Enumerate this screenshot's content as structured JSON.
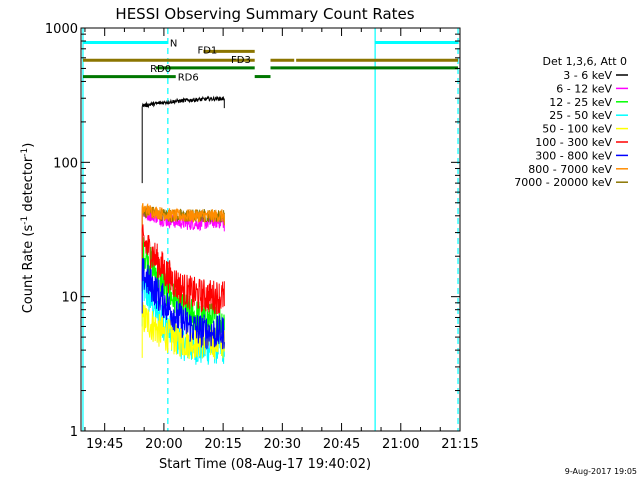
{
  "chart_data": {
    "type": "line",
    "title": "HESSI Observing Summary Count Rates",
    "xlabel": "Start Time (08-Aug-17 19:40:02)",
    "ylabel": "Count Rate (s",
    "ylabel_sup1": "-1",
    "ylabel_mid": " detector",
    "ylabel_sup2": "-1",
    "ylabel_end": ")",
    "y_scale": "log",
    "ylim": [
      1,
      1000
    ],
    "xlim_min": [
      -6,
      90
    ],
    "x_unit": "minutes after 19:45",
    "y_ticks": [
      {
        "v": 1,
        "label": "1"
      },
      {
        "v": 10,
        "label": "10"
      },
      {
        "v": 100,
        "label": "100"
      },
      {
        "v": 1000,
        "label": "1000"
      }
    ],
    "x_ticks": [
      {
        "t": 0,
        "label": "19:45"
      },
      {
        "t": 15,
        "label": "20:00"
      },
      {
        "t": 30,
        "label": "20:15"
      },
      {
        "t": 45,
        "label": "20:30"
      },
      {
        "t": 60,
        "label": "20:45"
      },
      {
        "t": 75,
        "label": "21:00"
      },
      {
        "t": 90,
        "label": "21:15"
      }
    ],
    "legend_title": "Det 1,3,6, Att 0",
    "legend_placement": "right",
    "series": [
      {
        "name": "3 - 6 keV",
        "color": "#000000",
        "start": 9.5,
        "end": 30.3,
        "values": [
          265,
          268,
          272,
          276,
          280,
          283,
          286,
          288,
          290,
          292,
          294,
          296,
          297,
          298,
          298
        ]
      },
      {
        "name": "6 - 12 keV",
        "color": "#ff00ff",
        "start": 9.5,
        "end": 30.3,
        "values": [
          42,
          41,
          40,
          38,
          37,
          36.5,
          36,
          35.5,
          35,
          35,
          35,
          35.5,
          36,
          36,
          36
        ]
      },
      {
        "name": "12 - 25 keV",
        "color": "#00ff00",
        "start": 9.5,
        "end": 30.3,
        "values": [
          22,
          19,
          16,
          13.5,
          11.5,
          10,
          9,
          8.2,
          7.6,
          7.2,
          7,
          6.8,
          6.7,
          6.6,
          6.6
        ]
      },
      {
        "name": "25 - 50 keV",
        "color": "#00ffff",
        "start": 9.5,
        "end": 30.3,
        "values": [
          12,
          10,
          8.5,
          7,
          6,
          5.3,
          4.8,
          4.5,
          4.3,
          4.2,
          4.1,
          4.1,
          4.2,
          4.2,
          4.2
        ]
      },
      {
        "name": "50 - 100 keV",
        "color": "#ffff00",
        "start": 9.5,
        "end": 30.3,
        "values": [
          7,
          6.5,
          6,
          5.5,
          5.2,
          5,
          4.8,
          4.7,
          4.6,
          4.6,
          4.6,
          4.6,
          4.6,
          4.6,
          4.6
        ]
      },
      {
        "name": "100 - 300 keV",
        "color": "#ff0000",
        "start": 9.5,
        "end": 30.3,
        "values": [
          26,
          23,
          20,
          17.5,
          15,
          13.5,
          12.2,
          11.3,
          10.8,
          10.4,
          10.2,
          10.1,
          10,
          10,
          10
        ]
      },
      {
        "name": "300 - 800 keV",
        "color": "#0000ff",
        "start": 9.5,
        "end": 30.3,
        "values": [
          15,
          13,
          11.5,
          10,
          8.8,
          7.8,
          7,
          6.5,
          6.1,
          5.8,
          5.6,
          5.5,
          5.4,
          5.4,
          5.4
        ]
      },
      {
        "name": "800 - 7000 keV",
        "color": "#ff8c00",
        "start": 9.5,
        "end": 30.3,
        "values": [
          45,
          44,
          43,
          42,
          41,
          40.5,
          40,
          40,
          40,
          40,
          40,
          40,
          40,
          40,
          40
        ]
      },
      {
        "name": "7000 - 20000 keV",
        "color": "#8b7500",
        "start": 9.5,
        "end": 30.3,
        "values": [
          44,
          43,
          42,
          41,
          40.5,
          40,
          40,
          40,
          40,
          40,
          40,
          40,
          40,
          40,
          40
        ]
      }
    ],
    "vlines": [
      {
        "t": -5.5,
        "style": "solid"
      },
      {
        "t": 16,
        "style": "dashed"
      },
      {
        "t": 68.5,
        "style": "solid"
      },
      {
        "t": 89.5,
        "style": "dashed"
      }
    ],
    "flag_bars": [
      {
        "label": "N",
        "color": "#00ffff",
        "v": 780,
        "segments": [
          [
            -5.5,
            16
          ],
          [
            68.5,
            89.5
          ]
        ],
        "label_t": 16.5,
        "label_v": 780
      },
      {
        "label": "FD1",
        "color": "#8b7500",
        "v": 670,
        "segments": [
          [
            25,
            38
          ]
        ],
        "label_t": 23.5,
        "label_v": 690
      },
      {
        "label": "FD3",
        "color": "#8b7500",
        "v": 575,
        "segments": [
          [
            -5.5,
            38
          ],
          [
            42,
            48
          ],
          [
            48.5,
            89.5
          ]
        ],
        "label_t": 32,
        "label_v": 590
      },
      {
        "label": "RD0",
        "color": "#007700",
        "v": 505,
        "segments": [
          [
            13,
            38
          ],
          [
            42,
            89.5
          ]
        ],
        "label_t": 11.5,
        "label_v": 505
      },
      {
        "label": "RD6",
        "color": "#007700",
        "v": 435,
        "segments": [
          [
            -5.5,
            18
          ],
          [
            38,
            42
          ]
        ],
        "label_t": 18.5,
        "label_v": 435
      }
    ]
  },
  "footer_date": "9-Aug-2017 19:05",
  "colors": {
    "cyan": "#00ffff",
    "olive": "#8b7500",
    "green": "#007700"
  }
}
